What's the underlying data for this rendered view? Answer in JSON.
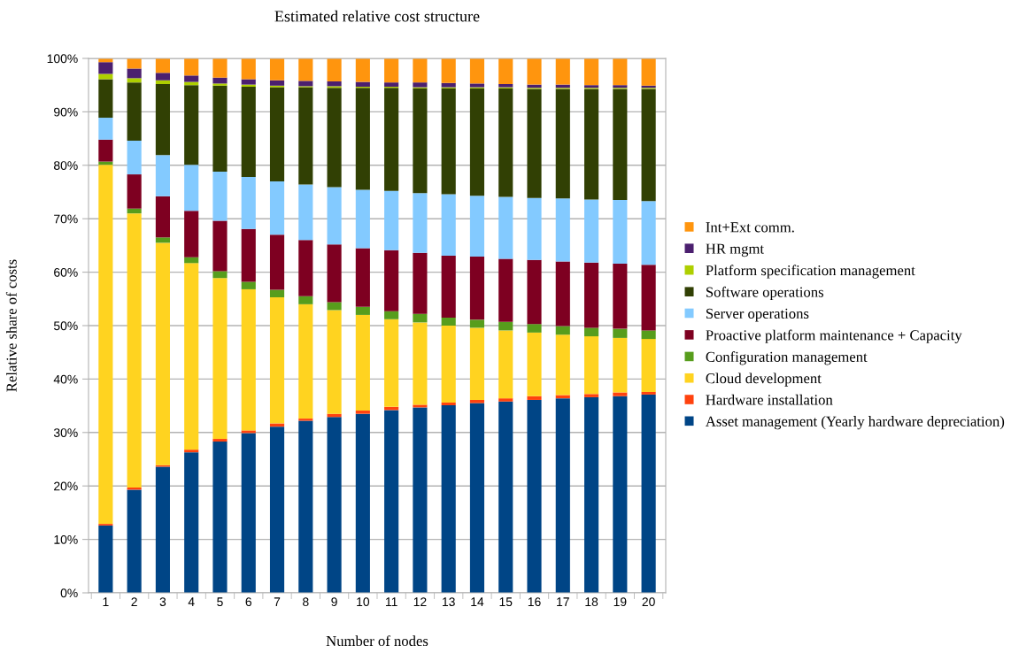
{
  "chart_data": {
    "type": "bar",
    "title": "Estimated relative cost structure",
    "xlabel": "Number of nodes",
    "ylabel": "Relative share of costs",
    "categories": [
      "1",
      "2",
      "3",
      "4",
      "5",
      "6",
      "7",
      "8",
      "9",
      "10",
      "11",
      "12",
      "13",
      "14",
      "15",
      "16",
      "17",
      "18",
      "19",
      "20"
    ],
    "stacked": true,
    "grid": "y",
    "legend": "right",
    "ylim": [
      0,
      100
    ],
    "yticks": [
      {
        "value": 0,
        "label": "0%"
      },
      {
        "value": 10,
        "label": "10%"
      },
      {
        "value": 20,
        "label": "20%"
      },
      {
        "value": 30,
        "label": "30%"
      },
      {
        "value": 40,
        "label": "40%"
      },
      {
        "value": 50,
        "label": "50%"
      },
      {
        "value": 60,
        "label": "60%"
      },
      {
        "value": 70,
        "label": "70%"
      },
      {
        "value": 80,
        "label": "80%"
      },
      {
        "value": 90,
        "label": "90%"
      },
      {
        "value": 100,
        "label": "100%"
      }
    ],
    "series": [
      {
        "name": "Asset management (Yearly hardware depreciation)",
        "color": "#004586",
        "values": [
          12.6,
          19.3,
          23.6,
          26.3,
          28.3,
          29.9,
          31.1,
          32.2,
          32.9,
          33.5,
          34.2,
          34.7,
          35.1,
          35.5,
          35.8,
          36.1,
          36.4,
          36.6,
          36.8,
          37.1
        ]
      },
      {
        "name": "Hardware installation",
        "color": "#ff420e",
        "values": [
          0.3,
          0.4,
          0.3,
          0.5,
          0.5,
          0.5,
          0.6,
          0.4,
          0.6,
          0.6,
          0.6,
          0.5,
          0.5,
          0.6,
          0.6,
          0.7,
          0.6,
          0.6,
          0.7,
          0.5
        ]
      },
      {
        "name": "Cloud development",
        "color": "#ffd320",
        "values": [
          67.2,
          51.3,
          41.6,
          34.9,
          30.1,
          26.4,
          23.6,
          21.4,
          19.4,
          17.9,
          16.4,
          15.4,
          14.4,
          13.5,
          12.7,
          11.9,
          11.3,
          10.8,
          10.2,
          9.9
        ]
      },
      {
        "name": "Configuration management",
        "color": "#579d1c",
        "values": [
          0.6,
          0.9,
          1.0,
          1.1,
          1.3,
          1.4,
          1.4,
          1.5,
          1.5,
          1.5,
          1.5,
          1.6,
          1.5,
          1.5,
          1.6,
          1.6,
          1.6,
          1.6,
          1.7,
          1.6
        ]
      },
      {
        "name": "Proactive platform maintenance + Capacity",
        "color": "#7e0021",
        "values": [
          4.1,
          6.4,
          7.7,
          8.7,
          9.4,
          9.9,
          10.3,
          10.5,
          10.8,
          11.0,
          11.4,
          11.4,
          11.6,
          11.8,
          11.8,
          12.0,
          12.1,
          12.2,
          12.2,
          12.3
        ]
      },
      {
        "name": "Server operations",
        "color": "#83caff",
        "values": [
          4.1,
          6.3,
          7.7,
          8.6,
          9.2,
          9.7,
          10.0,
          10.4,
          10.7,
          10.9,
          11.1,
          11.2,
          11.5,
          11.4,
          11.6,
          11.6,
          11.8,
          11.8,
          11.9,
          11.9
        ]
      },
      {
        "name": "Software operations",
        "color": "#314004",
        "values": [
          7.2,
          10.9,
          13.3,
          14.9,
          16.1,
          16.9,
          17.6,
          18.2,
          18.6,
          19.1,
          19.3,
          19.6,
          19.8,
          20.1,
          20.3,
          20.4,
          20.5,
          20.7,
          20.8,
          21.0
        ]
      },
      {
        "name": "Platform specification management",
        "color": "#aecf00",
        "values": [
          1.0,
          0.8,
          0.7,
          0.6,
          0.4,
          0.4,
          0.3,
          0.2,
          0.3,
          0.2,
          0.2,
          0.2,
          0.2,
          0.2,
          0.2,
          0.2,
          0.2,
          0.2,
          0.2,
          0.2
        ]
      },
      {
        "name": "HR mgmt",
        "color": "#4b1f6f",
        "values": [
          2.2,
          1.8,
          1.4,
          1.2,
          1.1,
          1.0,
          1.0,
          1.0,
          0.9,
          0.9,
          0.8,
          0.9,
          0.8,
          0.7,
          0.6,
          0.6,
          0.6,
          0.5,
          0.5,
          0.4
        ]
      },
      {
        "name": "Int+Ext comm.",
        "color": "#ff950e",
        "values": [
          0.7,
          1.9,
          2.7,
          3.2,
          3.6,
          3.9,
          4.1,
          4.2,
          4.3,
          4.4,
          4.5,
          4.5,
          4.6,
          4.7,
          4.8,
          4.9,
          4.9,
          5.0,
          5.0,
          5.1
        ]
      }
    ]
  }
}
